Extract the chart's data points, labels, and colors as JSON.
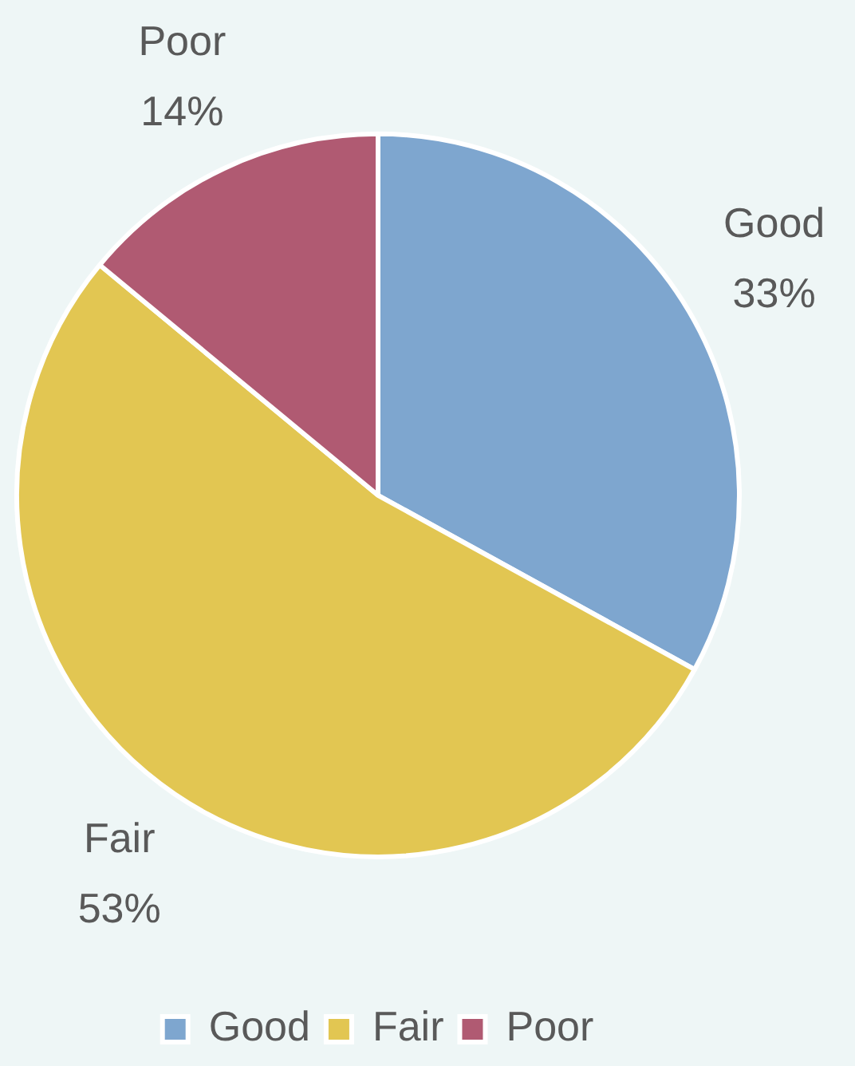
{
  "chart_data": {
    "type": "pie",
    "categories": [
      "Good",
      "Fair",
      "Poor"
    ],
    "values": [
      33,
      53,
      14
    ],
    "value_labels": [
      "33%",
      "53%",
      "14%"
    ],
    "colors": [
      "#7ea6cf",
      "#e2c652",
      "#b05a72"
    ],
    "legend": "bottom"
  }
}
